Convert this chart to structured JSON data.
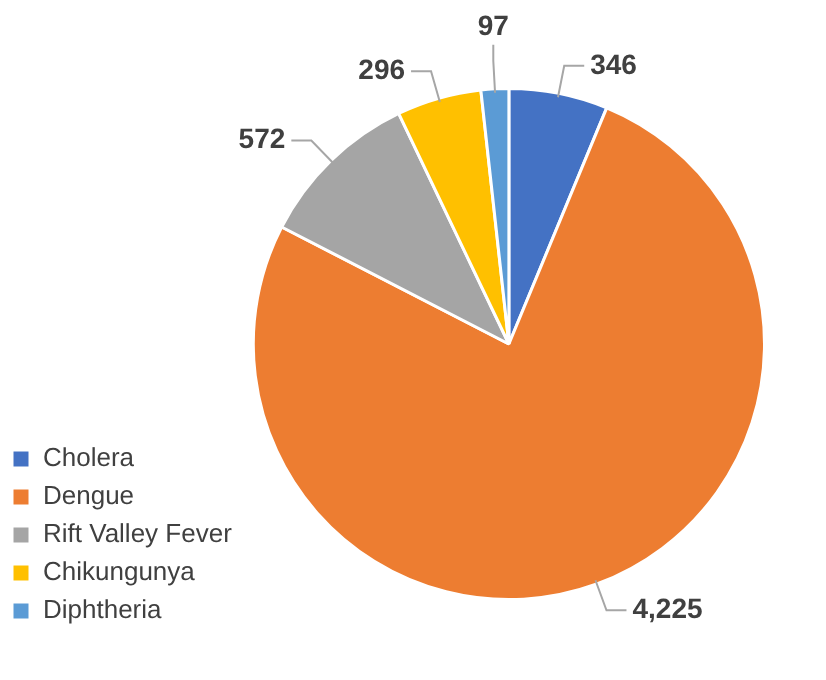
{
  "chart_data": {
    "type": "pie",
    "categories": [
      "Cholera",
      "Dengue",
      "Rift Valley Fever",
      "Chikungunya",
      "Diphtheria"
    ],
    "values": [
      346,
      4225,
      572,
      296,
      97
    ],
    "colors": [
      "#4472c4",
      "#ed7d31",
      "#a5a5a5",
      "#ffc000",
      "#5b9bd5"
    ],
    "value_labels": [
      "346",
      "4,225",
      "572",
      "296",
      "97"
    ],
    "legend": "bottom left"
  }
}
